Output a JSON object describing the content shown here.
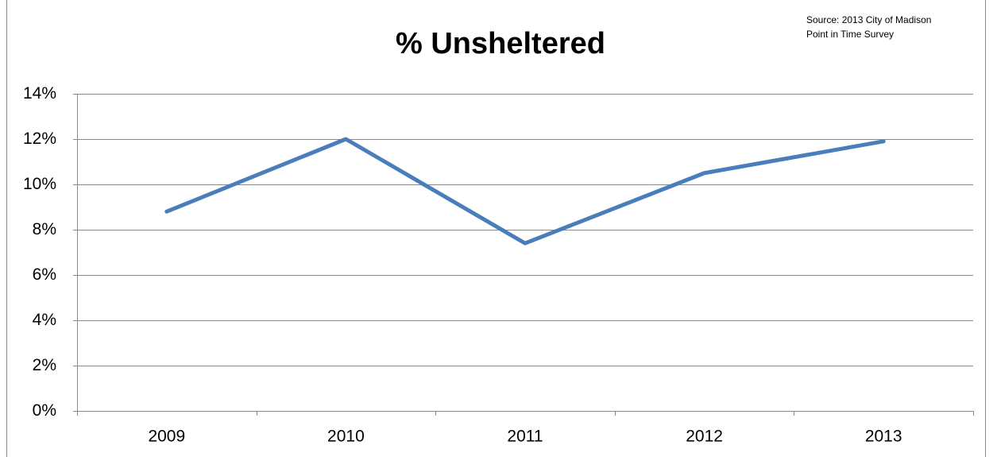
{
  "chart_data": {
    "type": "line",
    "title": "% Unsheltered",
    "source": [
      "Source: 2013 City of Madison",
      "Point in Time Survey"
    ],
    "categories": [
      "2009",
      "2010",
      "2011",
      "2012",
      "2013"
    ],
    "series": [
      {
        "name": "% Unsheltered",
        "color": "#4a7ebb",
        "values": [
          8.8,
          12.0,
          7.4,
          10.5,
          11.9
        ]
      }
    ],
    "ylim": [
      0,
      14
    ],
    "yticks": [
      {
        "value": 0,
        "label": "0%"
      },
      {
        "value": 2,
        "label": "2%"
      },
      {
        "value": 4,
        "label": "4%"
      },
      {
        "value": 6,
        "label": "6%"
      },
      {
        "value": 8,
        "label": "8%"
      },
      {
        "value": 10,
        "label": "10%"
      },
      {
        "value": 12,
        "label": "12%"
      },
      {
        "value": 14,
        "label": "14%"
      }
    ],
    "grid": true
  }
}
